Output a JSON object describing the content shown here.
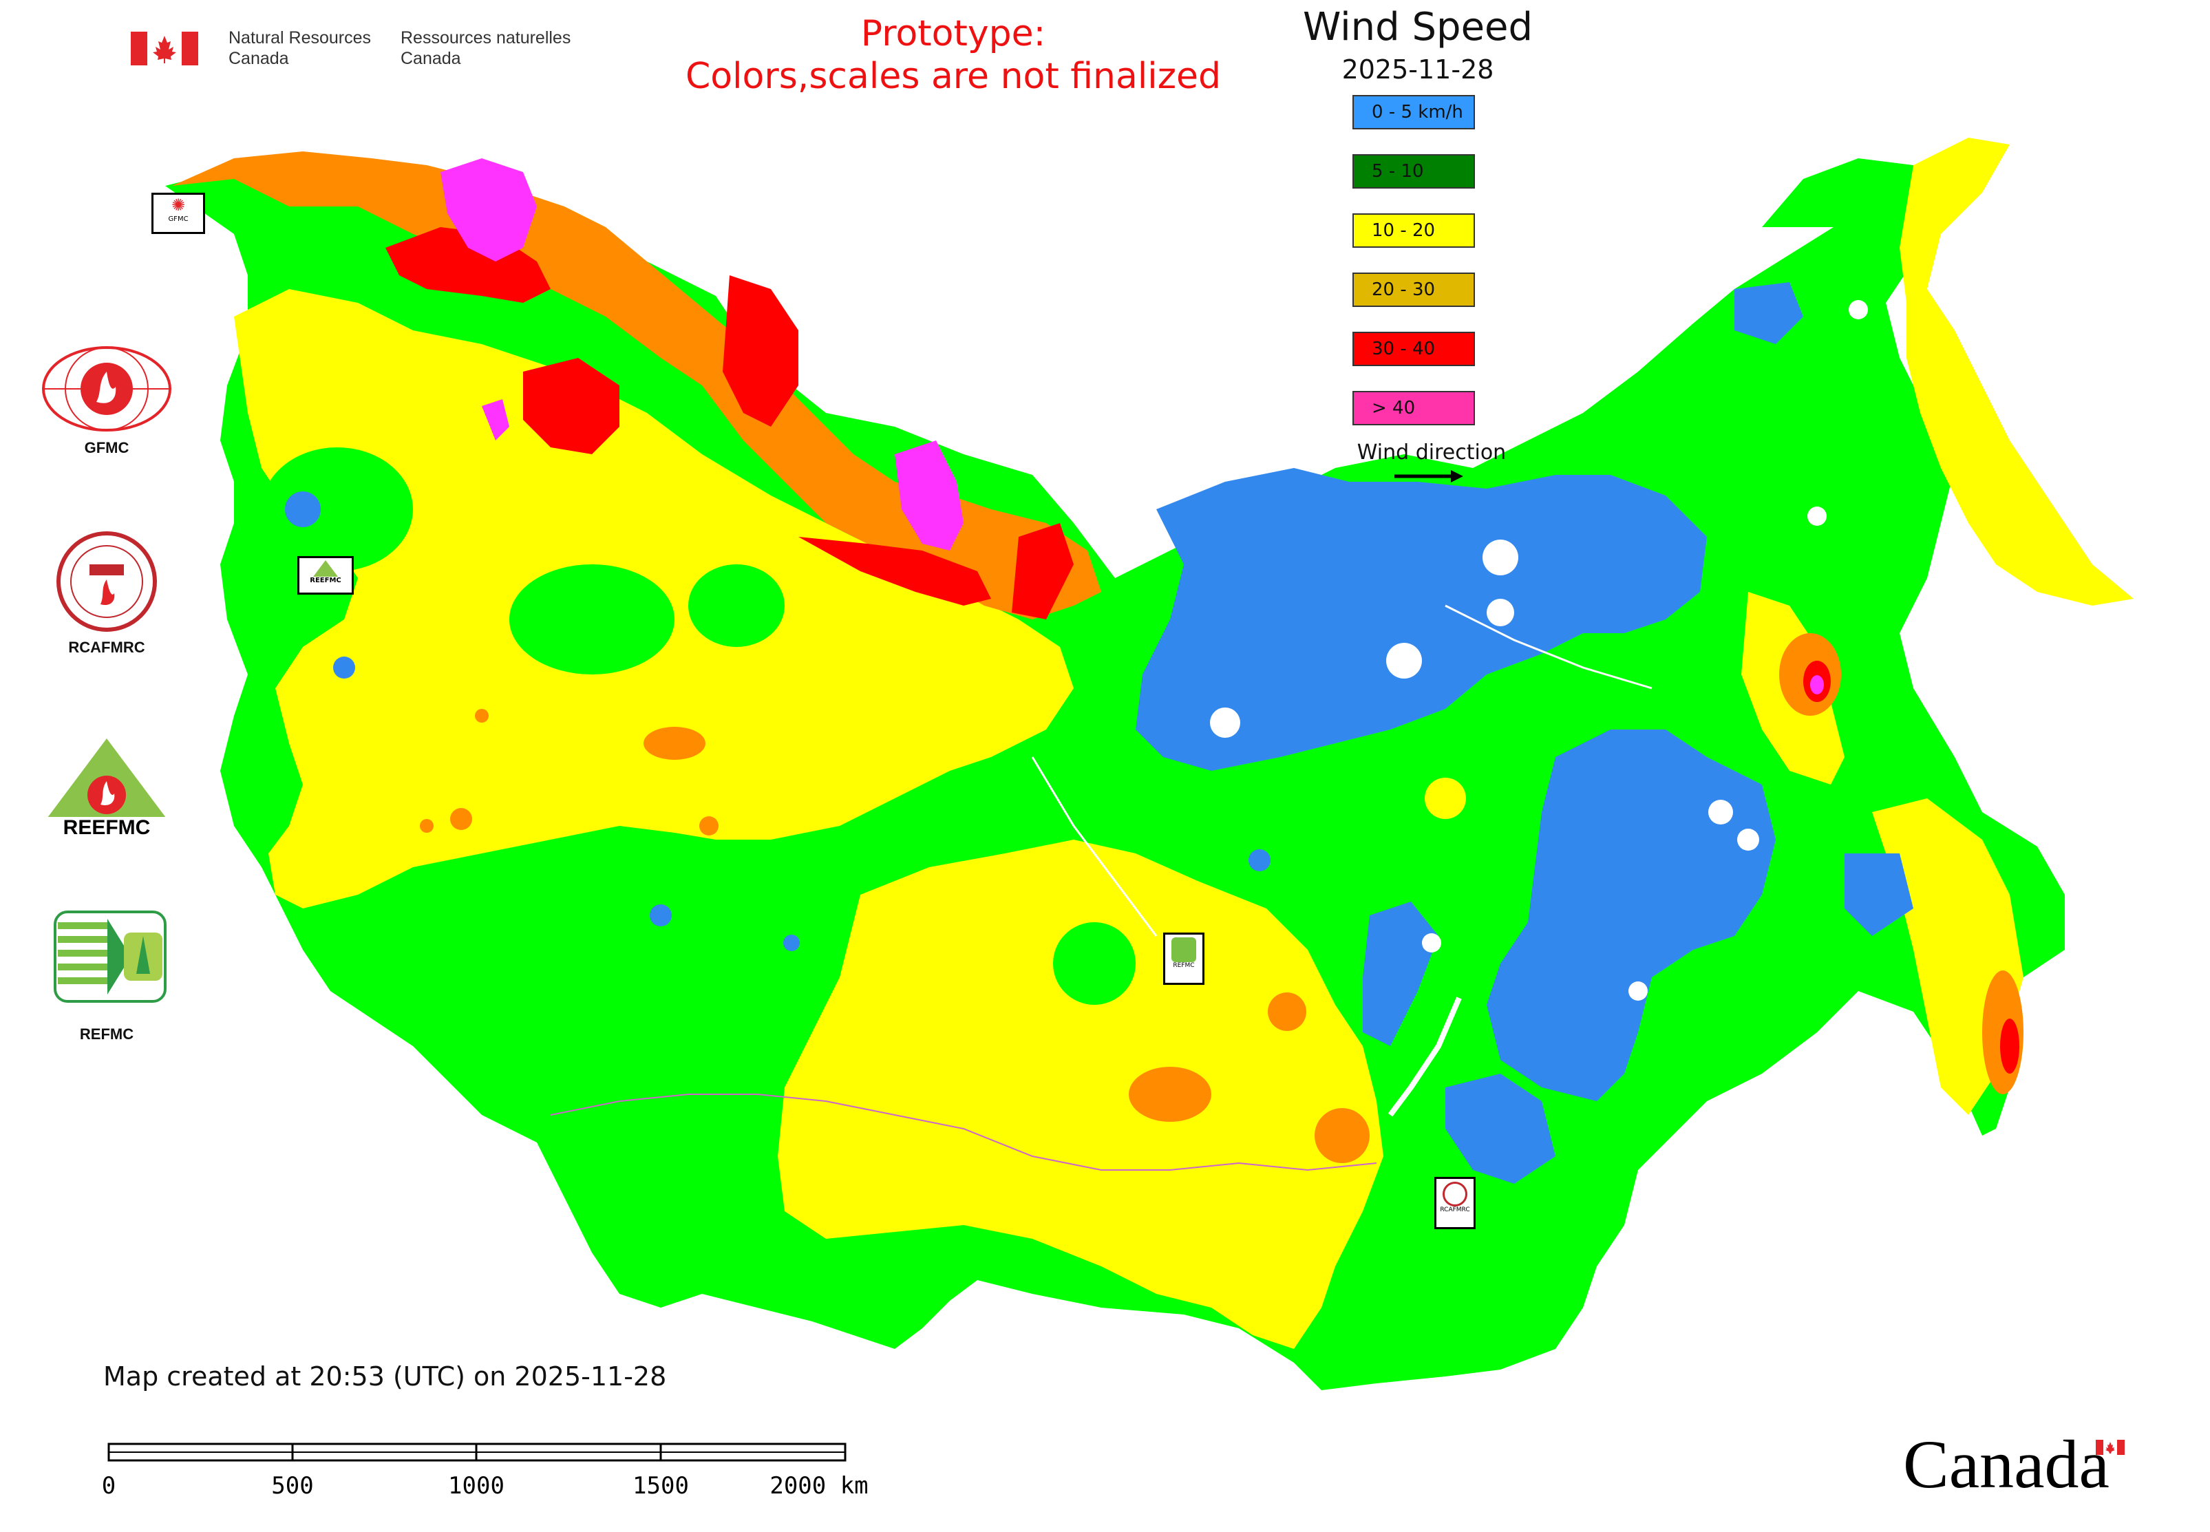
{
  "header": {
    "org_en": "Natural Resources\nCanada",
    "org_fr": "Ressources naturelles\nCanada",
    "prototype_line1": "Prototype:",
    "prototype_line2": "Colors,scales are not finalized"
  },
  "legend": {
    "title": "Wind Speed",
    "date": "2025-11-28",
    "items": [
      {
        "label": "0 - 5 km/h",
        "color": "#3399ff"
      },
      {
        "label": "5 - 10",
        "color": "#008000"
      },
      {
        "label": "10 - 20",
        "color": "#ffff00"
      },
      {
        "label": "20 - 30",
        "color": "#e0b800"
      },
      {
        "label": "30 - 40",
        "color": "#ff0000"
      },
      {
        "label": "> 40",
        "color": "#ff33aa"
      }
    ],
    "wind_direction_label": "Wind direction"
  },
  "side_logos": [
    {
      "label": "GFMC",
      "icon": "gfmc-logo"
    },
    {
      "label": "RCAFMRC",
      "icon": "rcafmrc-logo"
    },
    {
      "label": "REEFMC",
      "icon": "reefmc-logo"
    },
    {
      "label": "REFMC",
      "icon": "refmc-logo"
    }
  ],
  "map_markers": {
    "gfmc": "GFMC",
    "reefmc": "REEFMC",
    "refmc": "REFMC",
    "rcafmrc": "RCAFMRC"
  },
  "map_colors": {
    "blue": "#3388ee",
    "green": "#00ff00",
    "yellow": "#ffff00",
    "orange": "#ff8c00",
    "red": "#ff0000",
    "magenta": "#ff33ff"
  },
  "footer": {
    "created_note": "Map created at 20:53 (UTC) on 2025-11-28",
    "scale_labels": [
      "0",
      "500",
      "1000",
      "1500",
      "2000 km"
    ],
    "wordmark": "Canada"
  }
}
